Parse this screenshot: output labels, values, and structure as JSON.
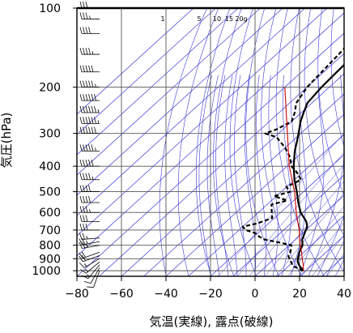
{
  "chart_data": {
    "type": "line",
    "xlabel": "気温(実線), 露点(破線)",
    "ylabel": "気圧(hPa)",
    "xlim": [
      -80,
      40
    ],
    "ylim": [
      1050,
      100
    ],
    "y_scale": "log",
    "x_ticks": [
      "−80",
      "−60",
      "−40",
      "−20",
      "0",
      "20",
      "40"
    ],
    "x_tick_values": [
      -80,
      -60,
      -40,
      -20,
      0,
      20,
      40
    ],
    "y_ticks": [
      "100",
      "200",
      "300",
      "400",
      "500",
      "600",
      "700",
      "800",
      "900",
      "1000"
    ],
    "y_tick_values": [
      100,
      200,
      300,
      400,
      500,
      600,
      700,
      800,
      900,
      1000
    ],
    "mixing_ratio_labels": [
      "1",
      "5",
      "10",
      "15",
      "20g"
    ],
    "background_line_color": "#3a3ad8",
    "grid": true,
    "series": [
      {
        "style": "solid",
        "color": "#000000",
        "points": [
          [
            1000,
            19
          ],
          [
            960,
            15
          ],
          [
            925,
            12
          ],
          [
            890,
            10
          ],
          [
            850,
            8
          ],
          [
            800,
            6
          ],
          [
            760,
            3
          ],
          [
            720,
            1
          ],
          [
            700,
            0
          ],
          [
            680,
            -1
          ],
          [
            650,
            -4
          ],
          [
            600,
            -11
          ],
          [
            550,
            -17
          ],
          [
            500,
            -23
          ],
          [
            450,
            -30
          ],
          [
            400,
            -37
          ],
          [
            350,
            -44
          ],
          [
            320,
            -48
          ],
          [
            300,
            -51
          ],
          [
            270,
            -56
          ],
          [
            250,
            -59
          ],
          [
            230,
            -62
          ],
          [
            210,
            -63
          ],
          [
            200,
            -63.5
          ],
          [
            180,
            -64
          ],
          [
            160,
            -64.5
          ],
          [
            150,
            -65
          ],
          [
            140,
            -66
          ],
          [
            130,
            -67
          ],
          [
            120,
            -68
          ],
          [
            110,
            -69
          ],
          [
            105,
            -70
          ],
          [
            100,
            -70
          ]
        ]
      },
      {
        "style": "dashed",
        "color": "#000000",
        "points": [
          [
            1000,
            19
          ],
          [
            960,
            12
          ],
          [
            925,
            9
          ],
          [
            880,
            5
          ],
          [
            850,
            4
          ],
          [
            800,
            1
          ],
          [
            780,
            -6
          ],
          [
            760,
            -14
          ],
          [
            740,
            -18
          ],
          [
            720,
            -21
          ],
          [
            700,
            -27
          ],
          [
            680,
            -30
          ],
          [
            660,
            -25
          ],
          [
            630,
            -21
          ],
          [
            600,
            -24
          ],
          [
            560,
            -28
          ],
          [
            540,
            -23
          ],
          [
            520,
            -31
          ],
          [
            500,
            -26
          ],
          [
            480,
            -30
          ],
          [
            450,
            -27
          ],
          [
            420,
            -33
          ],
          [
            400,
            -38
          ],
          [
            370,
            -43
          ],
          [
            340,
            -50
          ],
          [
            310,
            -59
          ],
          [
            300,
            -66
          ],
          [
            290,
            -63
          ],
          [
            270,
            -60
          ],
          [
            250,
            -63
          ],
          [
            230,
            -67
          ],
          [
            200,
            -70
          ],
          [
            150,
            -72
          ],
          [
            100,
            -75
          ]
        ]
      },
      {
        "style": "solid",
        "color": "#cc0000",
        "points": [
          [
            1000,
            19
          ],
          [
            950,
            16
          ],
          [
            900,
            12.5
          ],
          [
            850,
            9
          ],
          [
            800,
            5
          ],
          [
            750,
            1
          ],
          [
            700,
            -3
          ],
          [
            600,
            -13
          ],
          [
            500,
            -24
          ],
          [
            400,
            -39
          ],
          [
            300,
            -56
          ],
          [
            200,
            -80
          ]
        ]
      }
    ],
    "wind_barbs": [
      [
        1000,
        200,
        10
      ],
      [
        975,
        210,
        10
      ],
      [
        950,
        220,
        15
      ],
      [
        925,
        230,
        15
      ],
      [
        900,
        240,
        15
      ],
      [
        875,
        250,
        20
      ],
      [
        850,
        250,
        20
      ],
      [
        800,
        260,
        25
      ],
      [
        775,
        260,
        25
      ],
      [
        750,
        265,
        25
      ],
      [
        700,
        270,
        30
      ],
      [
        650,
        270,
        30
      ],
      [
        600,
        270,
        35
      ],
      [
        550,
        270,
        40
      ],
      [
        500,
        270,
        40
      ],
      [
        450,
        270,
        45
      ],
      [
        400,
        270,
        50
      ],
      [
        350,
        270,
        55
      ],
      [
        300,
        270,
        60
      ],
      [
        275,
        270,
        65
      ],
      [
        250,
        270,
        65
      ],
      [
        225,
        270,
        60
      ],
      [
        200,
        270,
        55
      ],
      [
        175,
        270,
        50
      ],
      [
        150,
        270,
        45
      ],
      [
        125,
        270,
        40
      ],
      [
        110,
        270,
        35
      ],
      [
        100,
        270,
        30
      ]
    ]
  }
}
